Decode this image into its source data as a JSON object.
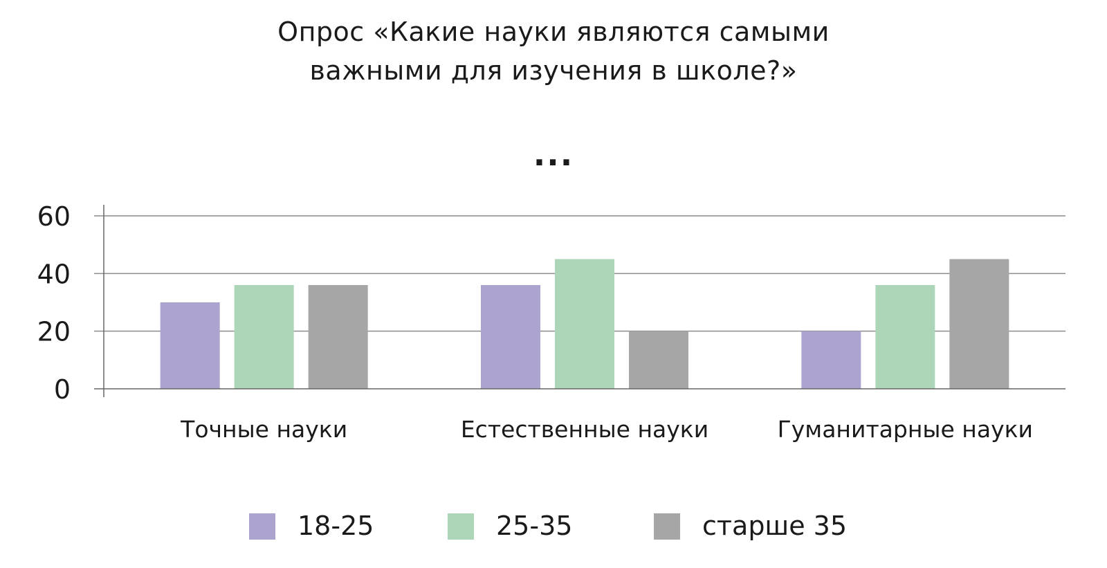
{
  "title_lines": [
    "Опрос «Какие науки являются самыми",
    "важными для изучения в школе?»"
  ],
  "subtitle": "...",
  "chart_data": {
    "type": "bar",
    "categories": [
      "Точные науки",
      "Естественные науки",
      "Гуманитарные науки"
    ],
    "series": [
      {
        "name": "18-25",
        "color": "#ada3cf",
        "values": [
          30,
          36,
          20
        ]
      },
      {
        "name": "25-35",
        "color": "#add6b8",
        "values": [
          36,
          45,
          36
        ]
      },
      {
        "name": "старше 35",
        "color": "#a6a6a6",
        "values": [
          36,
          20,
          45
        ]
      }
    ],
    "yticks": [
      0,
      20,
      40,
      60
    ],
    "ylim": [
      0,
      60
    ],
    "grid": true,
    "legend_position": "bottom"
  }
}
